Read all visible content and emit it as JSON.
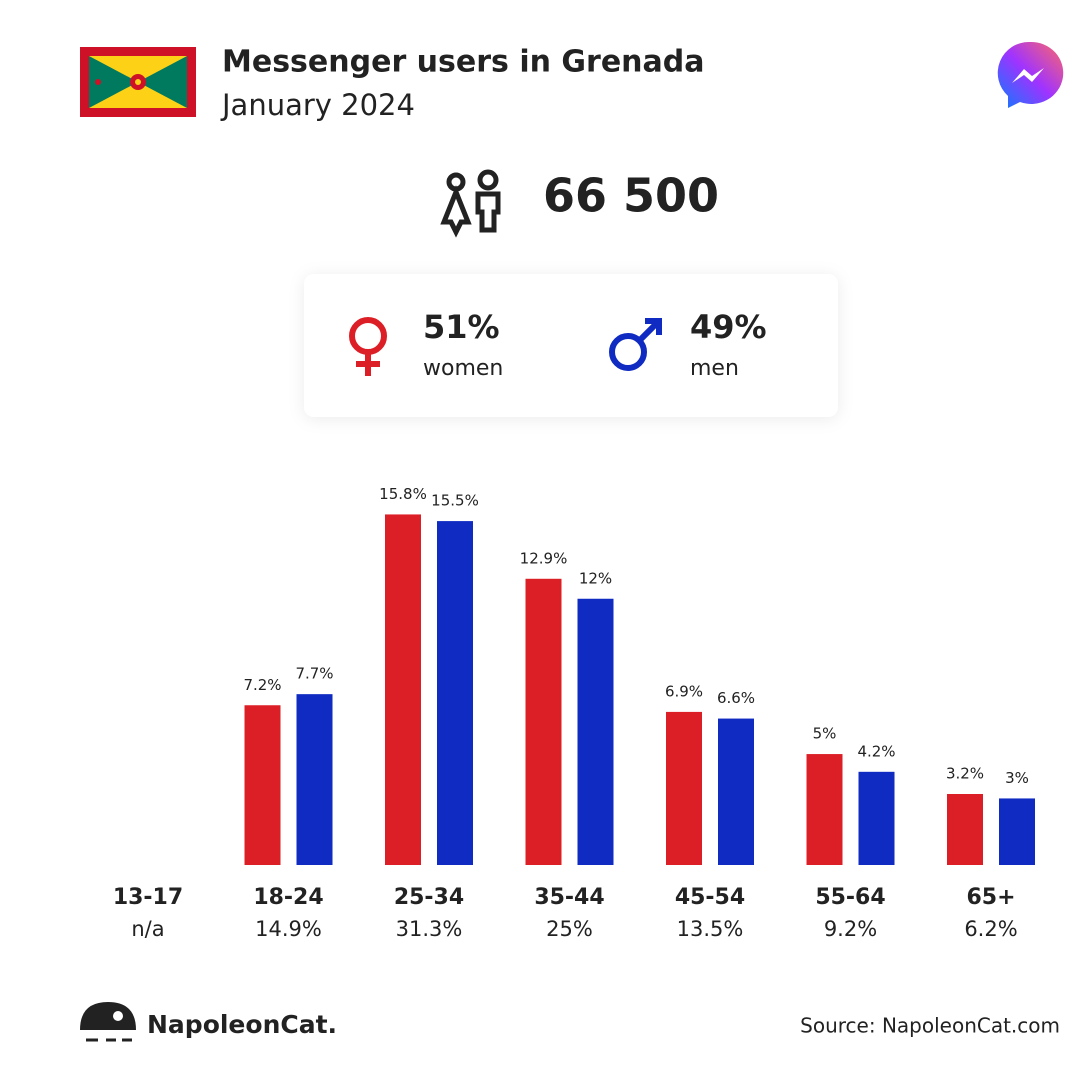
{
  "header": {
    "title": "Messenger users in Grenada",
    "subtitle": "January 2024"
  },
  "total": "66 500",
  "gender": {
    "women": {
      "share": "51%",
      "label": "women"
    },
    "men": {
      "share": "49%",
      "label": "men"
    }
  },
  "chart_data": {
    "type": "bar",
    "categories": [
      "13-17",
      "18-24",
      "25-34",
      "35-44",
      "45-54",
      "55-64",
      "65+"
    ],
    "category_totals": [
      "n/a",
      "14.9%",
      "31.3%",
      "25%",
      "13.5%",
      "9.2%",
      "6.2%"
    ],
    "series": [
      {
        "color": "#dc1f26",
        "values": [
          null,
          7.2,
          15.8,
          12.9,
          6.9,
          5,
          3.2
        ],
        "value_labels": [
          null,
          "7.2%",
          "15.8%",
          "12.9%",
          "6.9%",
          "5%",
          "3.2%"
        ]
      },
      {
        "color": "#0f2bc2",
        "values": [
          null,
          7.7,
          15.5,
          12,
          6.6,
          4.2,
          3
        ],
        "value_labels": [
          null,
          "7.7%",
          "15.5%",
          "12%",
          "6.6%",
          "4.2%",
          "3%"
        ]
      }
    ],
    "ylim": [
      0,
      16
    ]
  },
  "footer": {
    "brand": "NapoleonCat.",
    "source": "Source: NapoleonCat.com"
  }
}
